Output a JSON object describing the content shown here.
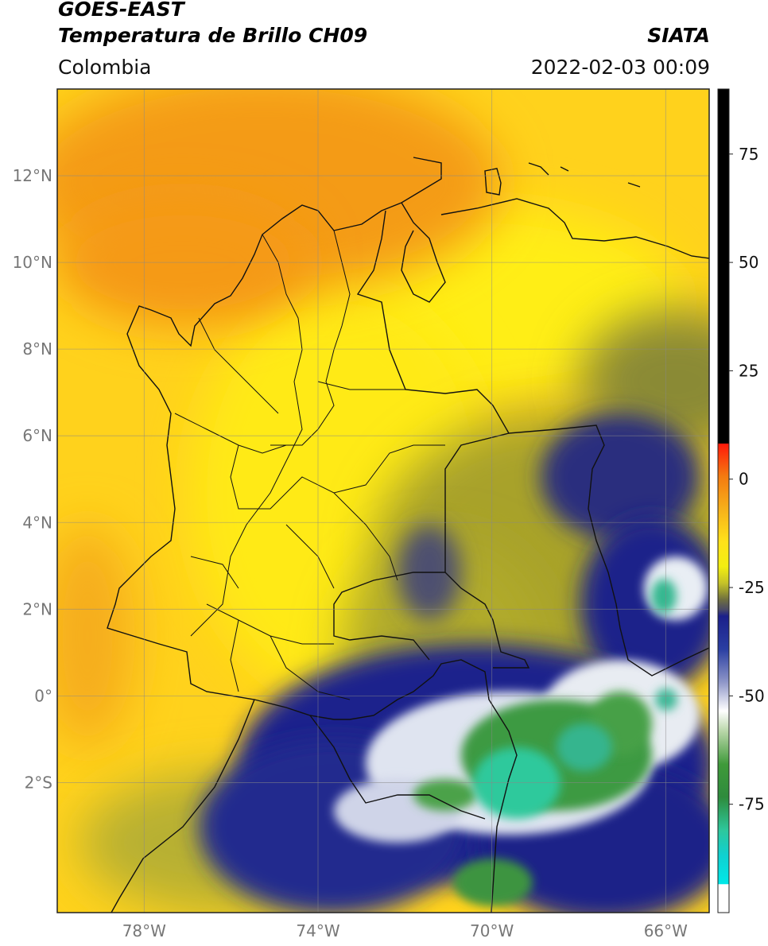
{
  "header": {
    "title_line1": "GOES-EAST",
    "title_line2": "Temperatura de Brillo CH09",
    "brand": "SIATA",
    "region": "Colombia",
    "datetime": "2022-02-03 00:09"
  },
  "map": {
    "lon_range": [
      -80,
      -65
    ],
    "lat_range": [
      -5,
      14
    ],
    "lat_ticks": [
      {
        "value": 12,
        "label": "12°N"
      },
      {
        "value": 10,
        "label": "10°N"
      },
      {
        "value": 8,
        "label": "8°N"
      },
      {
        "value": 6,
        "label": "6°N"
      },
      {
        "value": 4,
        "label": "4°N"
      },
      {
        "value": 2,
        "label": "2°N"
      },
      {
        "value": 0,
        "label": "0°"
      },
      {
        "value": -2,
        "label": "2°S"
      }
    ],
    "lon_ticks": [
      {
        "value": -78,
        "label": "78°W"
      },
      {
        "value": -74,
        "label": "74°W"
      },
      {
        "value": -70,
        "label": "70°W"
      },
      {
        "value": -66,
        "label": "66°W"
      }
    ],
    "gridlines": true
  },
  "colorbar": {
    "range": [
      -100,
      90
    ],
    "ticks": [
      {
        "value": 75,
        "label": "75"
      },
      {
        "value": 50,
        "label": "50"
      },
      {
        "value": 25,
        "label": "25"
      },
      {
        "value": 0,
        "label": "0"
      },
      {
        "value": -25,
        "label": "-25"
      },
      {
        "value": -50,
        "label": "-50"
      },
      {
        "value": -75,
        "label": "-75"
      }
    ],
    "colors": {
      "above_8": "#000000",
      "red": "#e8130d",
      "orange": "#f39c0c",
      "yellow": "#ffe21a",
      "olive": "#8a8a30",
      "navy": "#1a1f8a",
      "white": "#ffffff",
      "green": "#2e8b2e",
      "teal": "#2cc7a0",
      "cyan": "#00e5e5"
    }
  }
}
